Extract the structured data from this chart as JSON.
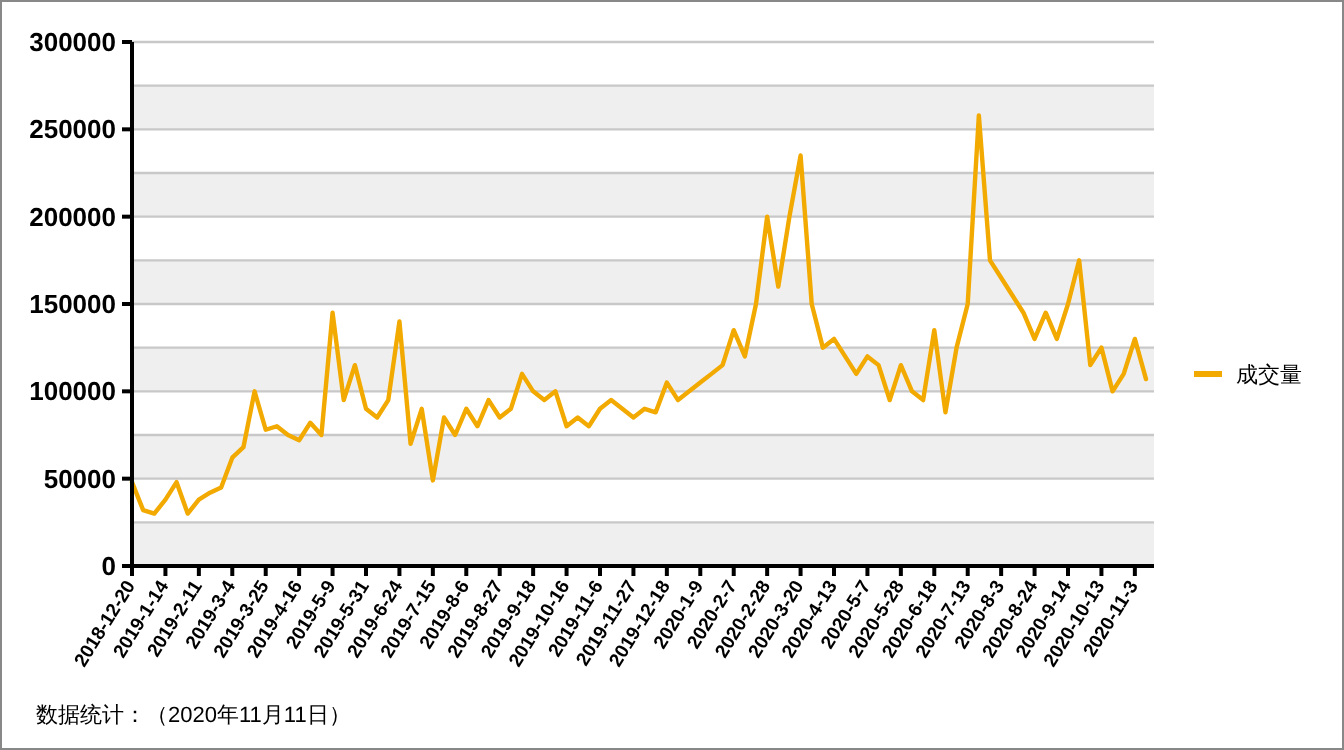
{
  "chart_data": {
    "type": "line",
    "categories": [
      "2018-12-20",
      null,
      null,
      "2019-1-14",
      null,
      null,
      "2019-2-11",
      null,
      null,
      "2019-3-4",
      null,
      null,
      "2019-3-25",
      null,
      null,
      "2019-4-16",
      null,
      null,
      "2019-5-9",
      null,
      null,
      "2019-5-31",
      null,
      null,
      "2019-6-24",
      null,
      null,
      "2019-7-15",
      null,
      null,
      "2019-8-6",
      null,
      null,
      "2019-8-27",
      null,
      null,
      "2019-9-18",
      null,
      null,
      "2019-10-16",
      null,
      null,
      "2019-11-6",
      null,
      null,
      "2019-11-27",
      null,
      null,
      "2019-12-18",
      null,
      null,
      "2020-1-9",
      null,
      null,
      "2020-2-7",
      null,
      null,
      "2020-2-28",
      null,
      null,
      "2020-3-20",
      null,
      null,
      "2020-4-13",
      null,
      null,
      "2020-5-7",
      null,
      null,
      "2020-5-28",
      null,
      null,
      "2020-6-18",
      null,
      null,
      "2020-7-13",
      null,
      null,
      "2020-8-3",
      null,
      null,
      "2020-8-24",
      null,
      null,
      "2020-9-14",
      null,
      null,
      "2020-10-13",
      null,
      null,
      "2020-11-3",
      null
    ],
    "series": [
      {
        "name": "成交量",
        "color": "#f2a900",
        "values": [
          48000,
          32000,
          30000,
          38000,
          48000,
          30000,
          38000,
          42000,
          45000,
          62000,
          68000,
          100000,
          78000,
          80000,
          75000,
          72000,
          82000,
          75000,
          145000,
          95000,
          115000,
          90000,
          85000,
          95000,
          140000,
          70000,
          90000,
          49000,
          85000,
          75000,
          90000,
          80000,
          95000,
          85000,
          90000,
          110000,
          100000,
          95000,
          100000,
          80000,
          85000,
          80000,
          90000,
          95000,
          90000,
          85000,
          90000,
          88000,
          105000,
          95000,
          100000,
          105000,
          110000,
          115000,
          135000,
          120000,
          150000,
          200000,
          160000,
          200000,
          235000,
          150000,
          125000,
          130000,
          120000,
          110000,
          120000,
          115000,
          95000,
          115000,
          100000,
          95000,
          135000,
          88000,
          125000,
          150000,
          258000,
          175000,
          165000,
          155000,
          145000,
          130000,
          145000,
          130000,
          150000,
          175000,
          115000,
          125000,
          100000,
          110000,
          130000,
          107000
        ]
      }
    ],
    "ylim": [
      0,
      300000
    ],
    "yticks": [
      0,
      {
        "value": 25000,
        "label": null
      },
      50000,
      {
        "value": 75000,
        "label": null
      },
      100000,
      {
        "value": 125000,
        "label": null
      },
      150000,
      {
        "value": 175000,
        "label": null
      },
      200000,
      {
        "value": 225000,
        "label": null
      },
      250000,
      {
        "value": 275000,
        "label": null
      },
      300000
    ],
    "grid": "y",
    "legend": "right",
    "marker": "none",
    "line_style": "solid",
    "annotations": [
      "数据统计：（2020年11月11日）"
    ]
  }
}
